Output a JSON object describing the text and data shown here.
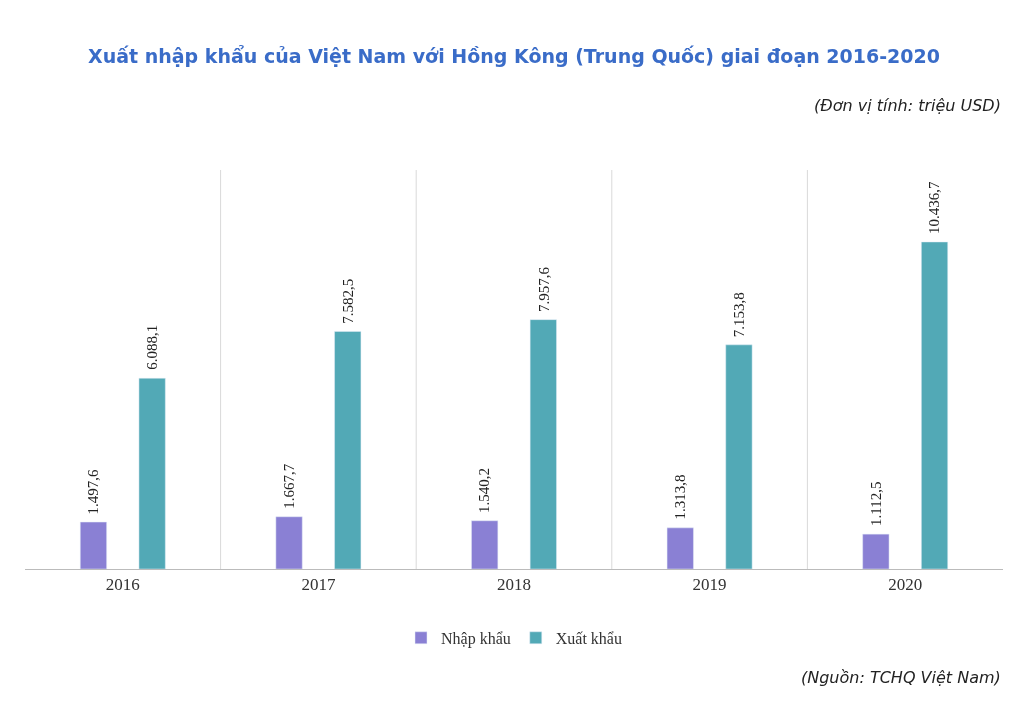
{
  "chart_data": {
    "type": "bar",
    "title": "Xuất nhập khẩu của Việt Nam với Hồng Kông (Trung Quốc) giai đoạn 2016-2020",
    "subtitle": "(Đơn vị tính: triệu USD)",
    "annotations": [
      "(Nguồn: TCHQ Việt Nam)"
    ],
    "categories": [
      "2016",
      "2017",
      "2018",
      "2019",
      "2020"
    ],
    "series": [
      {
        "name": "Nhập khẩu",
        "color": "#8a80d4",
        "values": [
          1497.6,
          1667.7,
          1540.2,
          1313.8,
          1112.5
        ],
        "value_labels": [
          "1.497,6",
          "1.667,7",
          "1.540,2",
          "1.313,8",
          "1.112,5"
        ]
      },
      {
        "name": "Xuất khẩu",
        "color": "#52a9b6",
        "values": [
          6088.1,
          7582.5,
          7957.6,
          7153.8,
          10436.7
        ],
        "value_labels": [
          "6.088,1",
          "7.582,5",
          "7.957,6",
          "7.153,8",
          "10.436,7"
        ]
      }
    ],
    "grid": "x",
    "legend": "bottom"
  }
}
